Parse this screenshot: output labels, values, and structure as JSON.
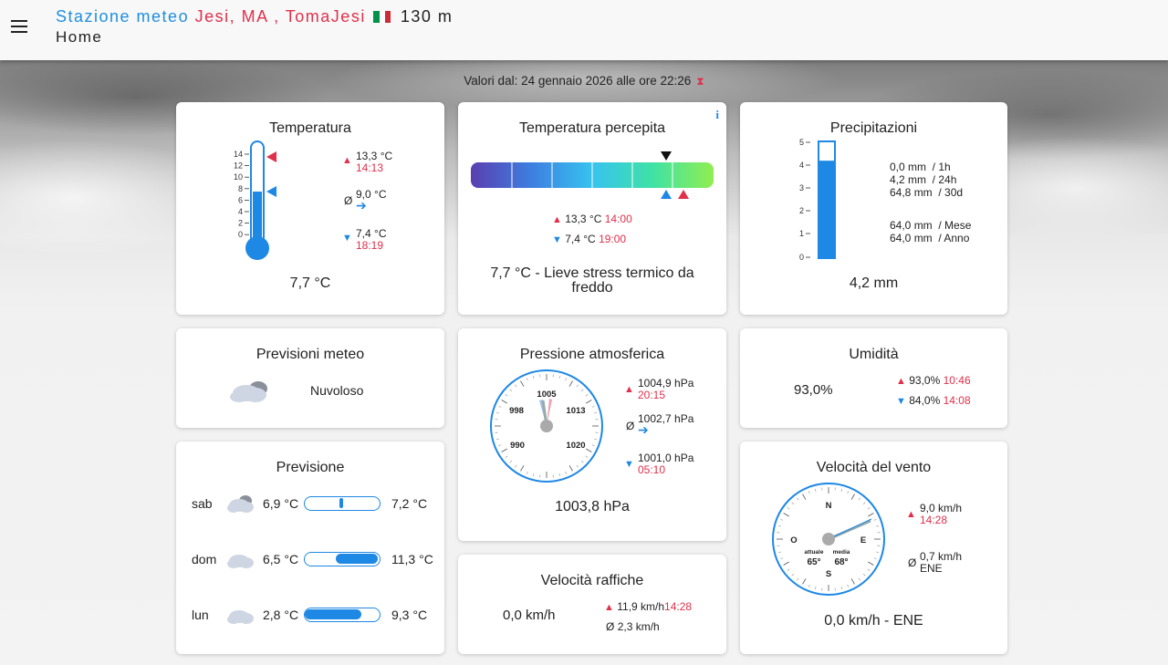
{
  "header": {
    "station_label": "Stazione meteo",
    "location": "Jesi, MA , TomaJesi",
    "flag_colors": [
      "#009246",
      "#ffffff",
      "#ce2b37"
    ],
    "altitude": "130 m",
    "page": "Home"
  },
  "updated": {
    "text": "Valori dal: 24 gennaio 2026 alle ore 22:26",
    "icon": "hourglass-icon"
  },
  "temperatura": {
    "title": "Temperatura",
    "scale": [
      "14",
      "12",
      "10",
      "8",
      "6",
      "4",
      "2",
      "0"
    ],
    "max_value": "13,3 °C",
    "max_time": "14:13",
    "avg_label": "Ø",
    "avg_value": "9,0 °C",
    "min_value": "7,4 °C",
    "min_time": "18:19",
    "current": "7,7 °C",
    "current_level": 7.7
  },
  "percepita": {
    "title": "Temperatura percepita",
    "info": "i",
    "max_value": "13,3 °C",
    "max_time": "14:00",
    "min_value": "7,4 °C",
    "min_time": "19:00",
    "current": "7,7 °C - Lieve stress termico da freddo"
  },
  "precipitazioni": {
    "title": "Precipitazioni",
    "scale": [
      "5",
      "4",
      "3",
      "2",
      "1",
      "0"
    ],
    "level_mm": 4.2,
    "rows": [
      "0,0 mm  / 1h",
      "4,2 mm  / 24h",
      "64,8 mm  / 30d"
    ],
    "rows2": [
      "64,0 mm  / Mese",
      "64,0 mm  / Anno"
    ],
    "current": "4,2 mm"
  },
  "previsioni": {
    "title": "Previsioni meteo",
    "condition": "Nuvoloso",
    "icon": "cloud-icon"
  },
  "pressione": {
    "title": "Pressione atmosferica",
    "dial": [
      "1005",
      "998",
      "1013",
      "990",
      "1020"
    ],
    "max_value": "1004,9 hPa",
    "max_time": "20:15",
    "avg_label": "Ø",
    "avg_value": "1002,7 hPa",
    "min_value": "1001,0 hPa",
    "min_time": "05:10",
    "current": "1003,8 hPa"
  },
  "umidita": {
    "title": "Umidità",
    "current": "93,0%",
    "max_value": "93,0%",
    "max_time": "10:46",
    "min_value": "84,0%",
    "min_time": "14:08"
  },
  "previsione": {
    "title": "Previsione",
    "days": [
      {
        "day": "sab",
        "min": "6,9 °C",
        "max": "7,2 °C",
        "bar_from": 0.48,
        "bar_to": 0.51
      },
      {
        "day": "dom",
        "min": "6,5 °C",
        "max": "11,3 °C",
        "bar_from": 0.42,
        "bar_to": 1.0
      },
      {
        "day": "lun",
        "min": "2,8 °C",
        "max": "9,3 °C",
        "bar_from": 0.0,
        "bar_to": 0.78
      }
    ]
  },
  "vento": {
    "title": "Velocità del vento",
    "compass": [
      "N",
      "O",
      "E",
      "S"
    ],
    "actual_label": "attuale",
    "actual_deg": "65°",
    "avg_label": "media",
    "avg_deg": "68°",
    "max_value": "9,0 km/h",
    "max_time": "14:28",
    "avg_sym": "Ø",
    "avg_value": "0,7 km/h",
    "avg_dir": "ENE",
    "current": "0,0 km/h - ENE"
  },
  "raffiche": {
    "title": "Velocità raffiche",
    "current": "0,0 km/h",
    "max_value": "11,9 km/h",
    "max_time": "14:28",
    "avg_label": "Ø",
    "avg_value": "2,3 km/h"
  }
}
